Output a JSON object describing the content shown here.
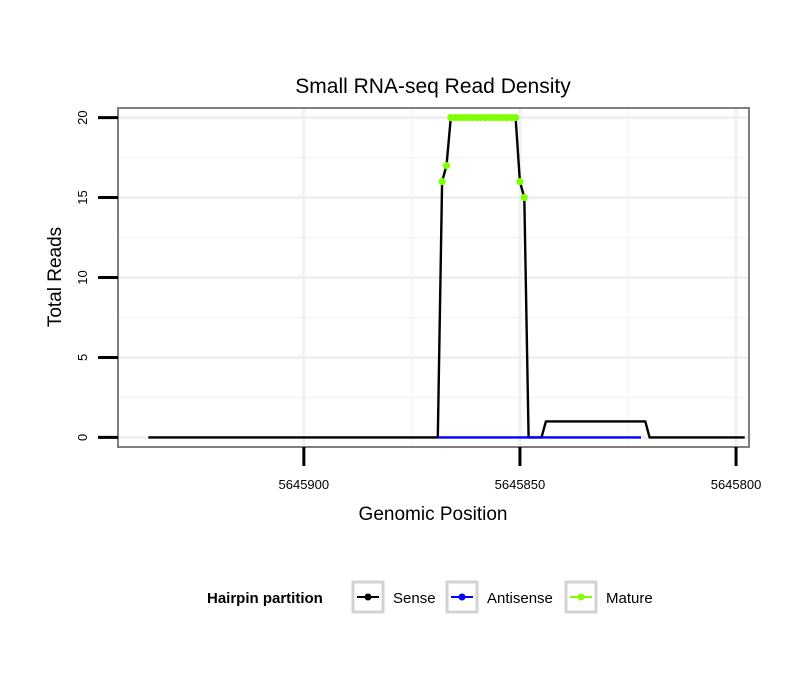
{
  "chart_data": {
    "type": "line",
    "title": "Small RNA-seq Read Density",
    "xlabel": "Genomic Position",
    "ylabel": "Total Reads",
    "x_reversed": true,
    "xlim": [
      5645943,
      5645797
    ],
    "ylim": [
      -0.6,
      20.6
    ],
    "x_ticks": [
      {
        "value": 5645900,
        "label": "5645900"
      },
      {
        "value": 5645850,
        "label": "5645850"
      },
      {
        "value": 5645800,
        "label": "5645800"
      }
    ],
    "y_ticks": [
      {
        "value": 0,
        "label": "0"
      },
      {
        "value": 5,
        "label": "5"
      },
      {
        "value": 10,
        "label": "10"
      },
      {
        "value": 15,
        "label": "15"
      },
      {
        "value": 20,
        "label": "20"
      }
    ],
    "grid": true,
    "legend": {
      "title": "Hairpin partition",
      "position": "bottom",
      "entries": [
        "Sense",
        "Antisense",
        "Mature"
      ]
    },
    "series": [
      {
        "name": "Sense",
        "color": "#000000",
        "points": [
          [
            5645936,
            0
          ],
          [
            5645869,
            0
          ],
          [
            5645868,
            16
          ],
          [
            5645867,
            17
          ],
          [
            5645866,
            20
          ],
          [
            5645851,
            20
          ],
          [
            5645850,
            16
          ],
          [
            5645849,
            15
          ],
          [
            5645848,
            0
          ],
          [
            5645845,
            0
          ],
          [
            5645844,
            1
          ],
          [
            5645821,
            1
          ],
          [
            5645820,
            0
          ],
          [
            5645798,
            0
          ]
        ]
      },
      {
        "name": "Antisense",
        "color": "#0000ff",
        "points": [
          [
            5645869,
            0
          ],
          [
            5645822,
            0
          ]
        ]
      },
      {
        "name": "Mature",
        "color": "#7fff00",
        "points": [
          [
            5645868,
            16
          ],
          [
            5645867,
            17
          ],
          [
            5645866,
            20
          ],
          [
            5645865,
            20
          ],
          [
            5645864,
            20
          ],
          [
            5645863,
            20
          ],
          [
            5645862,
            20
          ],
          [
            5645861,
            20
          ],
          [
            5645860,
            20
          ],
          [
            5645859,
            20
          ],
          [
            5645858,
            20
          ],
          [
            5645857,
            20
          ],
          [
            5645856,
            20
          ],
          [
            5645855,
            20
          ],
          [
            5645854,
            20
          ],
          [
            5645853,
            20
          ],
          [
            5645852,
            20
          ],
          [
            5645851,
            20
          ],
          [
            5645850,
            16
          ],
          [
            5645849,
            15
          ]
        ]
      }
    ]
  }
}
